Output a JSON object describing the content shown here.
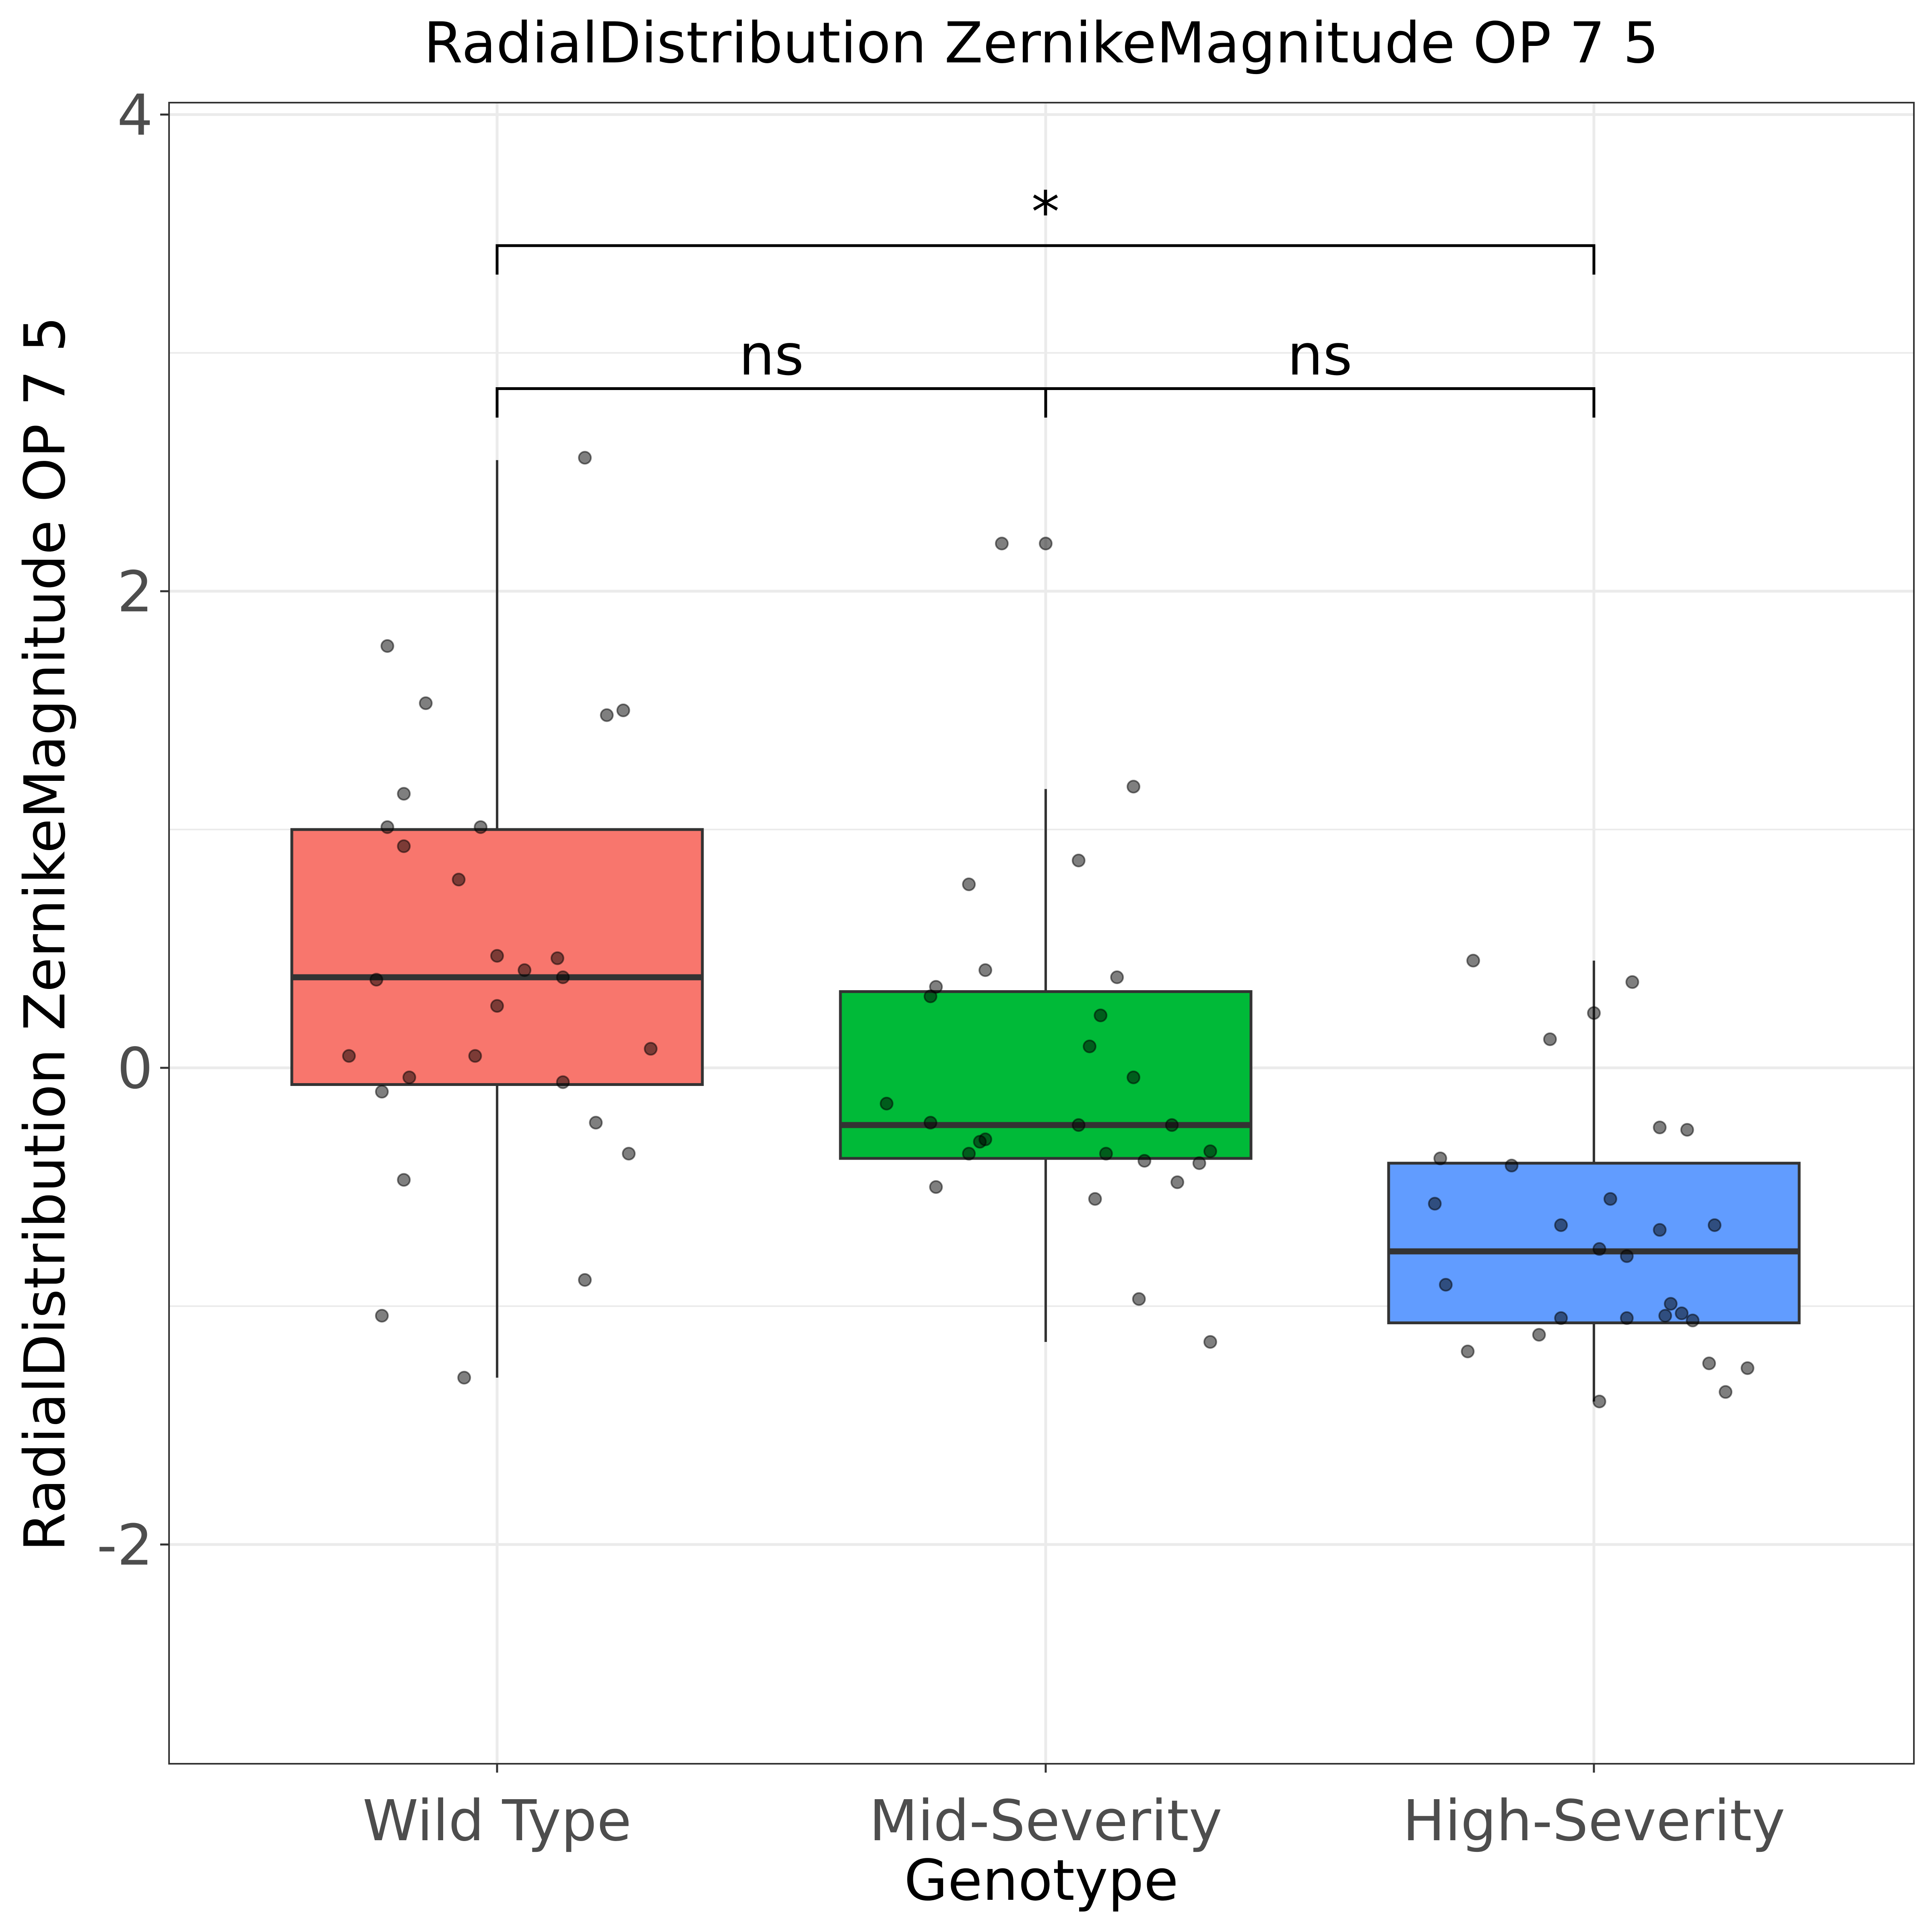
{
  "chart_data": {
    "type": "box",
    "title": "RadialDistribution ZernikeMagnitude OP 7 5",
    "xlabel": "Genotype",
    "ylabel": "RadialDistribution ZernikeMagnitude OP 7 5",
    "ylim": [
      -2.92,
      4.05
    ],
    "yticks": [
      "-2",
      "0",
      "2",
      "4"
    ],
    "ytick_values": [
      -2,
      0,
      2,
      4
    ],
    "grid": true,
    "categories": [
      "Wild Type",
      "Mid-Severity",
      "High-Severity"
    ],
    "boxes": [
      {
        "category": "Wild Type",
        "color": "#F8766D",
        "q1": -0.07,
        "median": 0.38,
        "q3": 1.0,
        "whisker_low": -1.3,
        "whisker_high": 2.55
      },
      {
        "category": "Mid-Severity",
        "color": "#00BA38",
        "q1": -0.38,
        "median": -0.24,
        "q3": 0.32,
        "whisker_low": -1.15,
        "whisker_high": 1.17
      },
      {
        "category": "High-Severity",
        "color": "#619CFF",
        "q1": -1.07,
        "median": -0.77,
        "q3": -0.4,
        "whisker_low": -1.4,
        "whisker_high": 0.45
      }
    ],
    "points": [
      {
        "category": "Wild Type",
        "jitter": -0.2,
        "y": 1.77
      },
      {
        "category": "Wild Type",
        "jitter": -0.13,
        "y": 1.53
      },
      {
        "category": "Wild Type",
        "jitter": 0.16,
        "y": 2.56
      },
      {
        "category": "Wild Type",
        "jitter": 0.2,
        "y": 1.48
      },
      {
        "category": "Wild Type",
        "jitter": 0.23,
        "y": 1.5
      },
      {
        "category": "Wild Type",
        "jitter": -0.17,
        "y": 1.15
      },
      {
        "category": "Wild Type",
        "jitter": -0.2,
        "y": 1.01
      },
      {
        "category": "Wild Type",
        "jitter": -0.03,
        "y": 1.01
      },
      {
        "category": "Wild Type",
        "jitter": -0.17,
        "y": 0.93
      },
      {
        "category": "Wild Type",
        "jitter": -0.07,
        "y": 0.79
      },
      {
        "category": "Wild Type",
        "jitter": 0.0,
        "y": 0.47
      },
      {
        "category": "Wild Type",
        "jitter": 0.11,
        "y": 0.46
      },
      {
        "category": "Wild Type",
        "jitter": 0.05,
        "y": 0.41
      },
      {
        "category": "Wild Type",
        "jitter": 0.12,
        "y": 0.38
      },
      {
        "category": "Wild Type",
        "jitter": -0.22,
        "y": 0.37
      },
      {
        "category": "Wild Type",
        "jitter": 0.0,
        "y": 0.26
      },
      {
        "category": "Wild Type",
        "jitter": 0.28,
        "y": 0.08
      },
      {
        "category": "Wild Type",
        "jitter": -0.27,
        "y": 0.05
      },
      {
        "category": "Wild Type",
        "jitter": -0.04,
        "y": 0.05
      },
      {
        "category": "Wild Type",
        "jitter": -0.16,
        "y": -0.04
      },
      {
        "category": "Wild Type",
        "jitter": 0.12,
        "y": -0.06
      },
      {
        "category": "Wild Type",
        "jitter": -0.21,
        "y": -0.1
      },
      {
        "category": "Wild Type",
        "jitter": 0.18,
        "y": -0.23
      },
      {
        "category": "Wild Type",
        "jitter": 0.24,
        "y": -0.36
      },
      {
        "category": "Wild Type",
        "jitter": -0.17,
        "y": -0.47
      },
      {
        "category": "Wild Type",
        "jitter": 0.16,
        "y": -0.89
      },
      {
        "category": "Wild Type",
        "jitter": -0.21,
        "y": -1.04
      },
      {
        "category": "Wild Type",
        "jitter": -0.06,
        "y": -1.3
      },
      {
        "category": "Mid-Severity",
        "jitter": -0.08,
        "y": 2.2
      },
      {
        "category": "Mid-Severity",
        "jitter": 0.0,
        "y": 2.2
      },
      {
        "category": "Mid-Severity",
        "jitter": 0.16,
        "y": 1.18
      },
      {
        "category": "Mid-Severity",
        "jitter": 0.06,
        "y": 0.87
      },
      {
        "category": "Mid-Severity",
        "jitter": -0.14,
        "y": 0.77
      },
      {
        "category": "Mid-Severity",
        "jitter": -0.11,
        "y": 0.41
      },
      {
        "category": "Mid-Severity",
        "jitter": 0.13,
        "y": 0.38
      },
      {
        "category": "Mid-Severity",
        "jitter": -0.2,
        "y": 0.34
      },
      {
        "category": "Mid-Severity",
        "jitter": -0.21,
        "y": 0.3
      },
      {
        "category": "Mid-Severity",
        "jitter": 0.1,
        "y": 0.22
      },
      {
        "category": "Mid-Severity",
        "jitter": 0.08,
        "y": 0.09
      },
      {
        "category": "Mid-Severity",
        "jitter": 0.16,
        "y": -0.04
      },
      {
        "category": "Mid-Severity",
        "jitter": -0.29,
        "y": -0.15
      },
      {
        "category": "Mid-Severity",
        "jitter": -0.21,
        "y": -0.23
      },
      {
        "category": "Mid-Severity",
        "jitter": 0.06,
        "y": -0.24
      },
      {
        "category": "Mid-Severity",
        "jitter": 0.23,
        "y": -0.24
      },
      {
        "category": "Mid-Severity",
        "jitter": -0.11,
        "y": -0.3
      },
      {
        "category": "Mid-Severity",
        "jitter": -0.12,
        "y": -0.31
      },
      {
        "category": "Mid-Severity",
        "jitter": -0.14,
        "y": -0.36
      },
      {
        "category": "Mid-Severity",
        "jitter": 0.11,
        "y": -0.36
      },
      {
        "category": "Mid-Severity",
        "jitter": 0.3,
        "y": -0.35
      },
      {
        "category": "Mid-Severity",
        "jitter": 0.18,
        "y": -0.39
      },
      {
        "category": "Mid-Severity",
        "jitter": 0.28,
        "y": -0.4
      },
      {
        "category": "Mid-Severity",
        "jitter": -0.2,
        "y": -0.5
      },
      {
        "category": "Mid-Severity",
        "jitter": 0.24,
        "y": -0.48
      },
      {
        "category": "Mid-Severity",
        "jitter": 0.09,
        "y": -0.55
      },
      {
        "category": "Mid-Severity",
        "jitter": 0.17,
        "y": -0.97
      },
      {
        "category": "Mid-Severity",
        "jitter": 0.3,
        "y": -1.15
      },
      {
        "category": "High-Severity",
        "jitter": -0.22,
        "y": 0.45
      },
      {
        "category": "High-Severity",
        "jitter": 0.07,
        "y": 0.36
      },
      {
        "category": "High-Severity",
        "jitter": 0.0,
        "y": 0.23
      },
      {
        "category": "High-Severity",
        "jitter": -0.08,
        "y": 0.12
      },
      {
        "category": "High-Severity",
        "jitter": 0.12,
        "y": -0.25
      },
      {
        "category": "High-Severity",
        "jitter": 0.17,
        "y": -0.26
      },
      {
        "category": "High-Severity",
        "jitter": -0.28,
        "y": -0.38
      },
      {
        "category": "High-Severity",
        "jitter": -0.15,
        "y": -0.41
      },
      {
        "category": "High-Severity",
        "jitter": 0.03,
        "y": -0.55
      },
      {
        "category": "High-Severity",
        "jitter": -0.29,
        "y": -0.57
      },
      {
        "category": "High-Severity",
        "jitter": -0.06,
        "y": -0.66
      },
      {
        "category": "High-Severity",
        "jitter": 0.22,
        "y": -0.66
      },
      {
        "category": "High-Severity",
        "jitter": 0.12,
        "y": -0.68
      },
      {
        "category": "High-Severity",
        "jitter": 0.01,
        "y": -0.76
      },
      {
        "category": "High-Severity",
        "jitter": 0.06,
        "y": -0.79
      },
      {
        "category": "High-Severity",
        "jitter": -0.27,
        "y": -0.91
      },
      {
        "category": "High-Severity",
        "jitter": 0.14,
        "y": -0.99
      },
      {
        "category": "High-Severity",
        "jitter": 0.16,
        "y": -1.03
      },
      {
        "category": "High-Severity",
        "jitter": 0.13,
        "y": -1.04
      },
      {
        "category": "High-Severity",
        "jitter": -0.06,
        "y": -1.05
      },
      {
        "category": "High-Severity",
        "jitter": 0.06,
        "y": -1.05
      },
      {
        "category": "High-Severity",
        "jitter": 0.18,
        "y": -1.06
      },
      {
        "category": "High-Severity",
        "jitter": -0.1,
        "y": -1.12
      },
      {
        "category": "High-Severity",
        "jitter": -0.23,
        "y": -1.19
      },
      {
        "category": "High-Severity",
        "jitter": 0.21,
        "y": -1.24
      },
      {
        "category": "High-Severity",
        "jitter": 0.28,
        "y": -1.26
      },
      {
        "category": "High-Severity",
        "jitter": 0.24,
        "y": -1.36
      },
      {
        "category": "High-Severity",
        "jitter": 0.01,
        "y": -1.4
      }
    ],
    "comparisons": [
      {
        "from": "Wild Type",
        "to": "Mid-Severity",
        "y": 2.85,
        "label": "ns"
      },
      {
        "from": "Mid-Severity",
        "to": "High-Severity",
        "y": 2.85,
        "label": "ns"
      },
      {
        "from": "Wild Type",
        "to": "High-Severity",
        "y": 3.45,
        "label": "*"
      }
    ],
    "colors": {
      "wild_type": "#F8766D",
      "mid_severity": "#00BA38",
      "high_severity": "#619CFF",
      "grid": "#ebebeb",
      "panel_border": "#333333",
      "tick_text": "#4d4d4d"
    }
  }
}
